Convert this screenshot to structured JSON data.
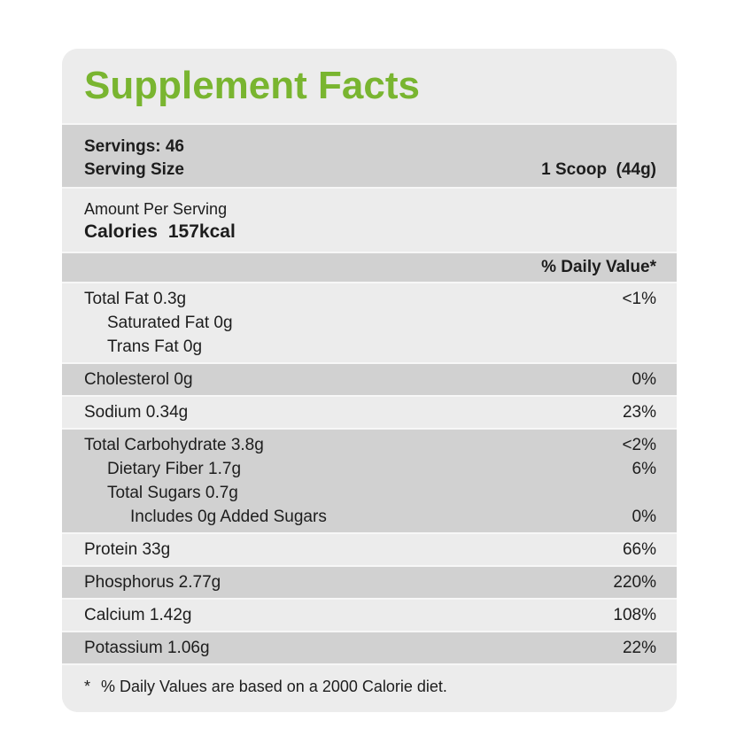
{
  "label": {
    "title": "Supplement Facts",
    "servings_line": "Servings: 46",
    "serving_size_label": "Serving Size",
    "serving_size_value": "1 Scoop  (44g)",
    "amount_per_serving": "Amount Per Serving",
    "calories_label": "Calories",
    "calories_value": "157kcal",
    "daily_value_header": "% Daily Value*",
    "footnote_mark": "*",
    "footnote_text": "% Daily Values are based on a 2000 Calorie diet."
  },
  "table": {
    "rows": [
      {
        "bg": "light",
        "lines": [
          {
            "label": "Total Fat 0.3g",
            "value": "<1%",
            "indent": 0
          },
          {
            "label": "Saturated Fat 0g",
            "value": "",
            "indent": 1
          },
          {
            "label": "Trans Fat 0g",
            "value": "",
            "indent": 1
          }
        ]
      },
      {
        "bg": "dark",
        "lines": [
          {
            "label": "Cholesterol 0g",
            "value": "0%",
            "indent": 0
          }
        ]
      },
      {
        "bg": "light",
        "lines": [
          {
            "label": "Sodium 0.34g",
            "value": "23%",
            "indent": 0
          }
        ]
      },
      {
        "bg": "dark",
        "lines": [
          {
            "label": "Total Carbohydrate 3.8g",
            "value": "<2%",
            "indent": 0
          },
          {
            "label": "Dietary Fiber 1.7g",
            "value": "6%",
            "indent": 1
          },
          {
            "label": "Total Sugars 0.7g",
            "value": "",
            "indent": 1
          },
          {
            "label": "Includes 0g Added Sugars",
            "value": "0%",
            "indent": 2
          }
        ]
      },
      {
        "bg": "light",
        "lines": [
          {
            "label": "Protein 33g",
            "value": "66%",
            "indent": 0
          }
        ]
      },
      {
        "bg": "dark",
        "lines": [
          {
            "label": "Phosphorus 2.77g",
            "value": "220%",
            "indent": 0
          }
        ]
      },
      {
        "bg": "light",
        "lines": [
          {
            "label": "Calcium 1.42g",
            "value": "108%",
            "indent": 0
          }
        ]
      },
      {
        "bg": "dark",
        "lines": [
          {
            "label": "Potassium 1.06g",
            "value": "22%",
            "indent": 0
          }
        ]
      }
    ]
  },
  "colors": {
    "accent_green": "#79b530",
    "band_dark": "#d1d1d1",
    "band_light": "#ececec",
    "text": "#1d1d1d"
  }
}
